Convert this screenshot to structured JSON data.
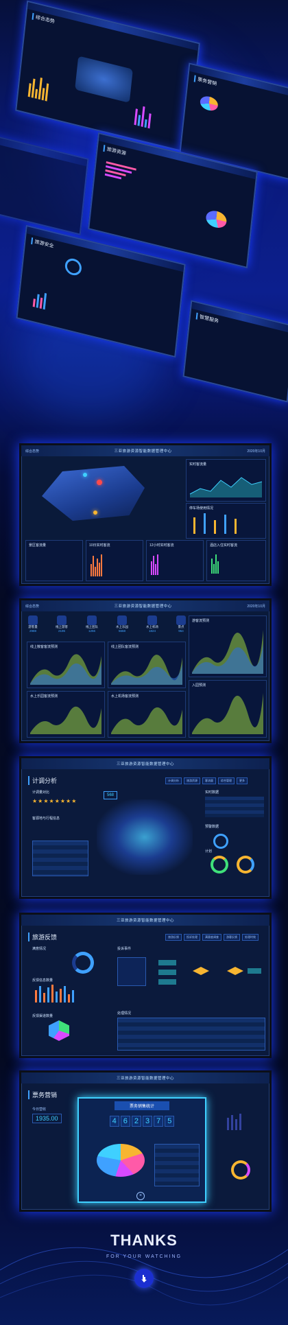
{
  "top_collage": {
    "screens": [
      {
        "title": "综合态势"
      },
      {
        "title": "票务营销"
      },
      {
        "title": "旅游资源"
      },
      {
        "title": "旅游安全"
      },
      {
        "title": "智慧服务"
      }
    ]
  },
  "screen1": {
    "topbar_left": "综合态势",
    "topbar_center": "三亚旅游资源智能数据管理中心",
    "topbar_right": "2020年10月",
    "card_traffic": "实时客流量",
    "card_parking": "停车场使用情况",
    "card_a": "景区客流量",
    "card_b": "10日实时客流",
    "card_c": "12小时实时客流",
    "card_d": "酒店入住实时客流"
  },
  "screen2": {
    "stats": [
      {
        "label": "游客量",
        "value": "2988"
      },
      {
        "label": "线上游客",
        "value": "2196"
      },
      {
        "label": "线上团队",
        "value": "1256"
      },
      {
        "label": "水上乐园",
        "value": "5668"
      },
      {
        "label": "水上机场",
        "value": "1824"
      },
      {
        "label": "景点",
        "value": "964"
      }
    ],
    "c1": "线上散客客流预测",
    "c2": "线上团队客流预测",
    "c3": "水上乐园客流预测",
    "c4": "水上机场客流预测",
    "c5": "游客流预测",
    "c6": "入园预测"
  },
  "screen3": {
    "title": "计调分析",
    "tabs": [
      "计调分析",
      "旅游资源",
      "客流量",
      "综合管理",
      "更多"
    ],
    "left1": "计调量对比",
    "left2": "客源地与行程信息",
    "right1": "实时数据",
    "right2": "预警数据",
    "right3": "计划",
    "counter": "568"
  },
  "screen4": {
    "title": "旅游反馈",
    "tabs": [
      "旅游反馈",
      "投诉处理",
      "满意度调查",
      "游客反馈",
      "处理时效"
    ],
    "c1": "满意情况",
    "c2": "反馈信息数量",
    "c3": "反馈渠道数量",
    "c4": "投诉事件",
    "c5": "处理情况"
  },
  "screen5": {
    "title": "票务营销",
    "popup_title": "票务销售统计",
    "counter_digits": [
      "4",
      "6",
      "2",
      "3",
      "7",
      "5"
    ],
    "left_value": "1935.00",
    "left_label": "今日营收"
  },
  "footer": {
    "thanks": "THANKS",
    "sub": "FOR YOUR WATCHING"
  },
  "colors": {
    "accent": "#3fa1ff",
    "panel": "#0a1a3a",
    "glow": "#1b3cff"
  }
}
